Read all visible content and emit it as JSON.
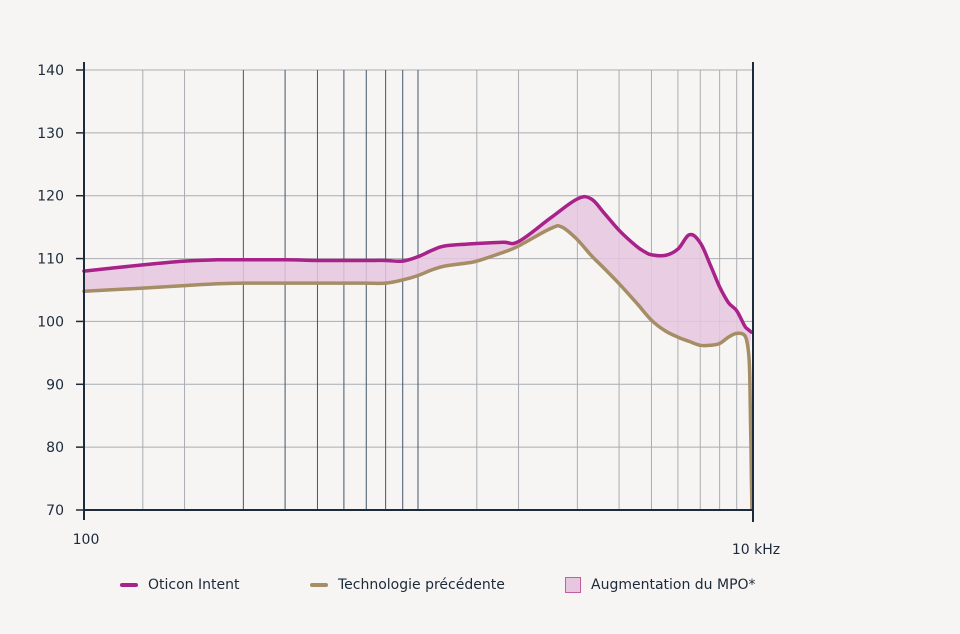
{
  "chart_data": {
    "type": "line",
    "xscale": "log",
    "xlim": [
      100,
      10000
    ],
    "ylim": [
      70,
      140
    ],
    "yticks": [
      70,
      80,
      90,
      100,
      110,
      120,
      130,
      140
    ],
    "xtick_labels": [
      {
        "value": 100,
        "label": "100"
      },
      {
        "value": 10000,
        "label": "10 kHz"
      }
    ],
    "grid": true,
    "legend_position": "bottom",
    "series": [
      {
        "name": "Oticon Intent",
        "color": "#a8228a",
        "x": [
          100,
          150,
          200,
          250,
          300,
          400,
          500,
          600,
          700,
          800,
          900,
          1000,
          1100,
          1200,
          1400,
          1500,
          1800,
          2000,
          2500,
          3000,
          3300,
          3600,
          4000,
          4500,
          4800,
          5000,
          5500,
          6000,
          6500,
          7000,
          7500,
          8000,
          8500,
          9000,
          9500,
          9700,
          9850,
          9950
        ],
        "y": [
          108,
          109,
          109.6,
          109.8,
          109.8,
          109.8,
          109.7,
          109.7,
          109.7,
          109.7,
          109.6,
          110.3,
          111.3,
          112,
          112.3,
          112.4,
          112.6,
          112.7,
          116.5,
          119.5,
          119.5,
          117.3,
          114.5,
          112,
          111,
          110.6,
          110.5,
          111.5,
          113.8,
          112.5,
          109,
          105.5,
          103,
          101.7,
          99.3,
          98.8,
          98.5,
          98.3
        ]
      },
      {
        "name": "Technologie précédente",
        "color": "#a58d66",
        "x": [
          100,
          150,
          200,
          250,
          300,
          400,
          500,
          600,
          700,
          800,
          900,
          1000,
          1100,
          1200,
          1400,
          1500,
          1800,
          2000,
          2500,
          2700,
          3000,
          3300,
          3600,
          4000,
          4500,
          5000,
          5500,
          6000,
          6500,
          7000,
          7500,
          8000,
          8500,
          9000,
          9500,
          9700,
          9800,
          9850,
          9880,
          9900,
          9930,
          9960,
          9990
        ],
        "y": [
          104.8,
          105.3,
          105.7,
          106,
          106.1,
          106.1,
          106.1,
          106.1,
          106.1,
          106.1,
          106.6,
          107.3,
          108.2,
          108.8,
          109.3,
          109.6,
          111,
          112,
          114.8,
          115,
          113,
          110.5,
          108.5,
          106,
          103,
          100.2,
          98.5,
          97.5,
          96.8,
          96.2,
          96.2,
          96.5,
          97.5,
          98.1,
          97.8,
          96.2,
          94,
          91,
          87,
          84,
          80,
          75,
          70.2
        ]
      }
    ],
    "fill_between": {
      "label": "Augmentation du MPO*",
      "color": "#e6c7df",
      "border": "#c25ea0"
    }
  },
  "legend": {
    "item1": "Oticon Intent",
    "item2": "Technologie précédente",
    "item3": "Augmentation du MPO*"
  }
}
